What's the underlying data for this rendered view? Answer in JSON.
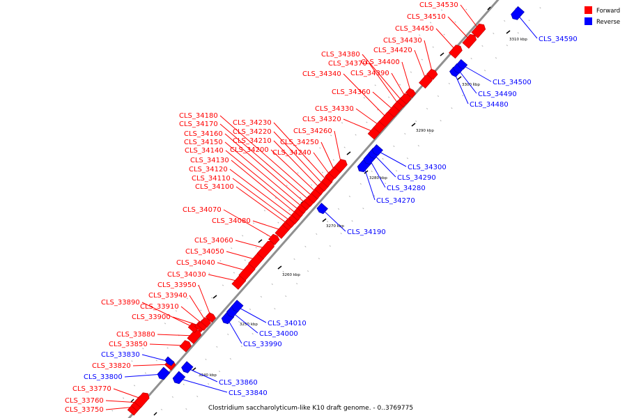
{
  "legend": [
    {
      "label": "Forward",
      "color": "#ff0000"
    },
    {
      "label": "Reverse",
      "color": "#0000ff"
    }
  ],
  "caption": "Clostridium saccharolyticum-like K10 draft genome. - 0..3769775",
  "colors": {
    "forward": "#ff0000",
    "reverse": "#0000ff",
    "backbone": "#909090"
  },
  "kbp_markers": [
    "3240 kbp",
    "3250 kbp",
    "3260 kbp",
    "3270 kbp",
    "3280 kbp",
    "3290 kbp",
    "3300 kbp",
    "3310 kbp"
  ],
  "genes": [
    {
      "id": "CLS_33750",
      "strand": "forward"
    },
    {
      "id": "CLS_33760",
      "strand": "forward"
    },
    {
      "id": "CLS_33770",
      "strand": "forward"
    },
    {
      "id": "CLS_33800",
      "strand": "reverse"
    },
    {
      "id": "CLS_33820",
      "strand": "forward"
    },
    {
      "id": "CLS_33830",
      "strand": "reverse"
    },
    {
      "id": "CLS_33840",
      "strand": "reverse"
    },
    {
      "id": "CLS_33850",
      "strand": "forward"
    },
    {
      "id": "CLS_33860",
      "strand": "reverse"
    },
    {
      "id": "CLS_33880",
      "strand": "forward"
    },
    {
      "id": "CLS_33890",
      "strand": "forward"
    },
    {
      "id": "CLS_33900",
      "strand": "forward"
    },
    {
      "id": "CLS_33910",
      "strand": "forward"
    },
    {
      "id": "CLS_33940",
      "strand": "forward"
    },
    {
      "id": "CLS_33950",
      "strand": "forward"
    },
    {
      "id": "CLS_33990",
      "strand": "reverse"
    },
    {
      "id": "CLS_34000",
      "strand": "reverse"
    },
    {
      "id": "CLS_34010",
      "strand": "reverse"
    },
    {
      "id": "CLS_34030",
      "strand": "forward"
    },
    {
      "id": "CLS_34040",
      "strand": "forward"
    },
    {
      "id": "CLS_34050",
      "strand": "forward"
    },
    {
      "id": "CLS_34060",
      "strand": "forward"
    },
    {
      "id": "CLS_34070",
      "strand": "forward"
    },
    {
      "id": "CLS_34080",
      "strand": "forward"
    },
    {
      "id": "CLS_34100",
      "strand": "forward"
    },
    {
      "id": "CLS_34110",
      "strand": "forward"
    },
    {
      "id": "CLS_34120",
      "strand": "forward"
    },
    {
      "id": "CLS_34130",
      "strand": "forward"
    },
    {
      "id": "CLS_34140",
      "strand": "forward"
    },
    {
      "id": "CLS_34150",
      "strand": "forward"
    },
    {
      "id": "CLS_34160",
      "strand": "forward"
    },
    {
      "id": "CLS_34170",
      "strand": "forward"
    },
    {
      "id": "CLS_34180",
      "strand": "forward"
    },
    {
      "id": "CLS_34190",
      "strand": "reverse"
    },
    {
      "id": "CLS_34200",
      "strand": "forward"
    },
    {
      "id": "CLS_34210",
      "strand": "forward"
    },
    {
      "id": "CLS_34220",
      "strand": "forward"
    },
    {
      "id": "CLS_34230",
      "strand": "forward"
    },
    {
      "id": "CLS_34240",
      "strand": "forward"
    },
    {
      "id": "CLS_34250",
      "strand": "forward"
    },
    {
      "id": "CLS_34260",
      "strand": "forward"
    },
    {
      "id": "CLS_34270",
      "strand": "reverse"
    },
    {
      "id": "CLS_34280",
      "strand": "reverse"
    },
    {
      "id": "CLS_34290",
      "strand": "reverse"
    },
    {
      "id": "CLS_34300",
      "strand": "reverse"
    },
    {
      "id": "CLS_34320",
      "strand": "forward"
    },
    {
      "id": "CLS_34330",
      "strand": "forward"
    },
    {
      "id": "CLS_34340",
      "strand": "forward"
    },
    {
      "id": "CLS_34360",
      "strand": "forward"
    },
    {
      "id": "CLS_34370",
      "strand": "forward"
    },
    {
      "id": "CLS_34380",
      "strand": "forward"
    },
    {
      "id": "CLS_34390",
      "strand": "forward"
    },
    {
      "id": "CLS_34400",
      "strand": "forward"
    },
    {
      "id": "CLS_34420",
      "strand": "forward"
    },
    {
      "id": "CLS_34430",
      "strand": "forward"
    },
    {
      "id": "CLS_34450",
      "strand": "forward"
    },
    {
      "id": "CLS_34480",
      "strand": "reverse"
    },
    {
      "id": "CLS_34490",
      "strand": "reverse"
    },
    {
      "id": "CLS_34500",
      "strand": "reverse"
    },
    {
      "id": "CLS_34510",
      "strand": "forward"
    },
    {
      "id": "CLS_34530",
      "strand": "forward"
    },
    {
      "id": "CLS_34590",
      "strand": "reverse"
    }
  ]
}
